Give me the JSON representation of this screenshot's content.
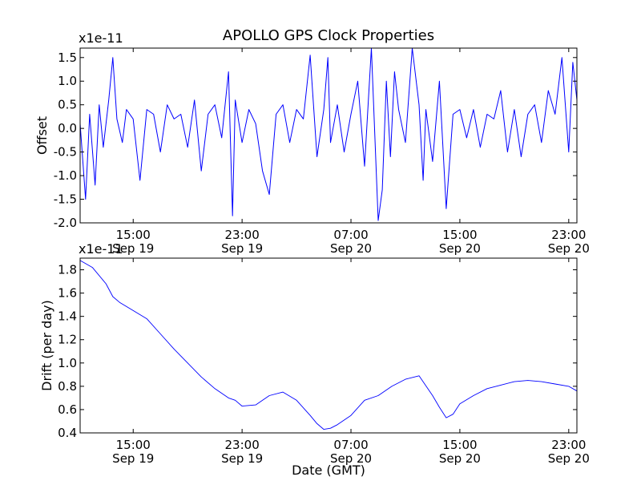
{
  "figure_title": "APOLLO GPS Clock Properties",
  "x_label": "Date (GMT)",
  "x_ticks": [
    {
      "time": "15:00",
      "date": "Sep 19",
      "hours": 0
    },
    {
      "time": "23:00",
      "date": "Sep 19",
      "hours": 8
    },
    {
      "time": "07:00",
      "date": "Sep 20",
      "hours": 16
    },
    {
      "time": "15:00",
      "date": "Sep 20",
      "hours": 24
    },
    {
      "time": "23:00",
      "date": "Sep 20",
      "hours": 32
    }
  ],
  "colors": {
    "series": "#0000ff",
    "axes": "#000000",
    "background": "#ffffff"
  },
  "chart_data": [
    {
      "type": "line",
      "title": "APOLLO GPS Clock Properties",
      "ylabel": "Offset",
      "xlabel": "",
      "scale_label": "x1e-11",
      "x_unit": "hours since 15:00 Sep 19",
      "xlim": [
        -3.9,
        32.6
      ],
      "ylim": [
        -2.0,
        1.7
      ],
      "yticks": [
        "-2.0",
        "-1.5",
        "-1.0",
        "-0.5",
        "0.0",
        "0.5",
        "1.0",
        "1.5"
      ],
      "ytick_values": [
        -2.0,
        -1.5,
        -1.0,
        -0.5,
        0.0,
        0.5,
        1.0,
        1.5
      ],
      "series": [
        {
          "name": "Offset",
          "x": [
            -3.9,
            -3.5,
            -3.2,
            -2.8,
            -2.5,
            -2.2,
            -1.8,
            -1.5,
            -1.2,
            -0.8,
            -0.5,
            0.0,
            0.5,
            1.0,
            1.5,
            2.0,
            2.5,
            3.0,
            3.5,
            4.0,
            4.5,
            5.0,
            5.5,
            6.0,
            6.5,
            7.0,
            7.3,
            7.5,
            8.0,
            8.5,
            9.0,
            9.5,
            10.0,
            10.5,
            11.0,
            11.5,
            12.0,
            12.5,
            13.0,
            13.5,
            14.0,
            14.3,
            14.5,
            15.0,
            15.5,
            16.0,
            16.5,
            17.0,
            17.5,
            18.0,
            18.3,
            18.6,
            18.9,
            19.2,
            19.5,
            20.0,
            20.5,
            21.0,
            21.3,
            21.5,
            22.0,
            22.5,
            23.0,
            23.5,
            24.0,
            24.5,
            25.0,
            25.5,
            26.0,
            26.5,
            27.0,
            27.5,
            28.0,
            28.5,
            29.0,
            29.5,
            30.0,
            30.5,
            31.0,
            31.5,
            32.0,
            32.3,
            32.6
          ],
          "values": [
            0.1,
            -1.5,
            0.3,
            -1.2,
            0.5,
            -0.4,
            0.6,
            1.5,
            0.2,
            -0.3,
            0.4,
            0.2,
            -1.1,
            0.4,
            0.3,
            -0.5,
            0.5,
            0.2,
            0.3,
            -0.4,
            0.6,
            -0.9,
            0.3,
            0.5,
            -0.2,
            1.2,
            -1.85,
            0.6,
            -0.3,
            0.4,
            0.1,
            -0.9,
            -1.4,
            0.3,
            0.5,
            -0.3,
            0.4,
            0.2,
            1.55,
            -0.6,
            0.4,
            1.5,
            -0.3,
            0.5,
            -0.5,
            0.3,
            1.0,
            -0.8,
            1.7,
            -1.95,
            -1.3,
            1.0,
            -0.6,
            1.2,
            0.4,
            -0.3,
            1.7,
            0.5,
            -1.1,
            0.4,
            -0.7,
            1.0,
            -1.7,
            0.3,
            0.4,
            -0.2,
            0.4,
            -0.4,
            0.3,
            0.2,
            0.8,
            -0.5,
            0.4,
            -0.6,
            0.3,
            0.5,
            -0.3,
            0.8,
            0.3,
            1.5,
            -0.5,
            1.4,
            0.6
          ]
        }
      ]
    },
    {
      "type": "line",
      "title": "",
      "ylabel": "Drift (per day)",
      "xlabel": "Date (GMT)",
      "scale_label": "x1e-11",
      "x_unit": "hours since 15:00 Sep 19",
      "xlim": [
        -3.9,
        32.6
      ],
      "ylim": [
        0.4,
        1.9
      ],
      "yticks": [
        "0.4",
        "0.6",
        "0.8",
        "1.0",
        "1.2",
        "1.4",
        "1.6",
        "1.8"
      ],
      "ytick_values": [
        0.4,
        0.6,
        0.8,
        1.0,
        1.2,
        1.4,
        1.6,
        1.8
      ],
      "series": [
        {
          "name": "Drift",
          "x": [
            -3.9,
            -3.0,
            -2.0,
            -1.5,
            -1.0,
            0.0,
            1.0,
            2.0,
            3.0,
            4.0,
            5.0,
            6.0,
            7.0,
            7.5,
            8.0,
            9.0,
            10.0,
            11.0,
            12.0,
            13.0,
            13.5,
            14.0,
            14.5,
            15.0,
            16.0,
            17.0,
            18.0,
            19.0,
            20.0,
            21.0,
            22.0,
            22.5,
            23.0,
            23.5,
            24.0,
            25.0,
            26.0,
            27.0,
            28.0,
            29.0,
            30.0,
            31.0,
            32.0,
            32.6
          ],
          "values": [
            1.88,
            1.82,
            1.68,
            1.57,
            1.52,
            1.45,
            1.38,
            1.25,
            1.12,
            1.0,
            0.88,
            0.78,
            0.7,
            0.68,
            0.63,
            0.64,
            0.72,
            0.75,
            0.68,
            0.55,
            0.48,
            0.43,
            0.44,
            0.47,
            0.55,
            0.68,
            0.72,
            0.8,
            0.86,
            0.89,
            0.72,
            0.62,
            0.53,
            0.56,
            0.65,
            0.72,
            0.78,
            0.81,
            0.84,
            0.85,
            0.84,
            0.82,
            0.8,
            0.76
          ]
        }
      ]
    }
  ]
}
